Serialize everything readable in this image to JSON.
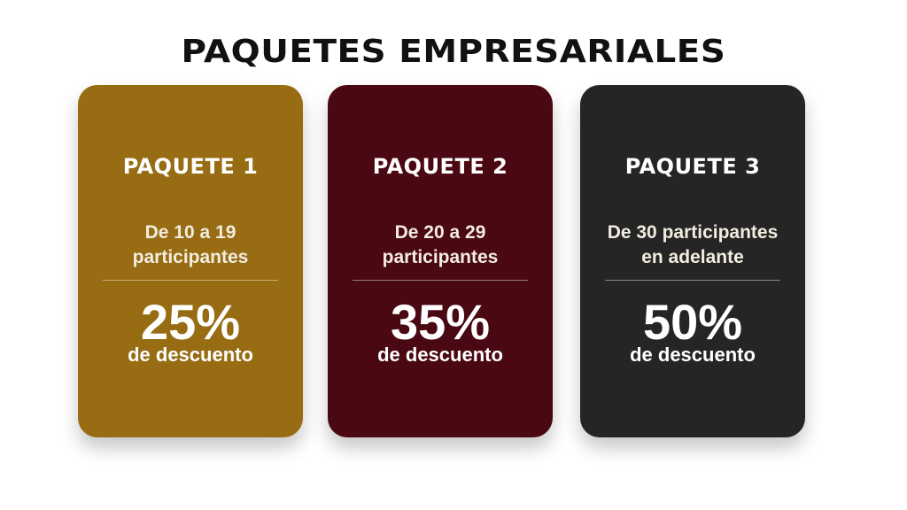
{
  "title": "PAQUETES EMPRESARIALES",
  "packages": [
    {
      "name": "PAQUETE 1",
      "line1": "De 10 a 19",
      "line2": "participantes",
      "discount": "25%",
      "discount_label": "de descuento",
      "color": "#976c13"
    },
    {
      "name": "PAQUETE 2",
      "line1": "De 20 a 29",
      "line2": "participantes",
      "discount": "35%",
      "discount_label": "de descuento",
      "color": "#4a0812"
    },
    {
      "name": "PAQUETE 3",
      "line1": "De 30 participantes",
      "line2": "en adelante",
      "discount": "50%",
      "discount_label": "de descuento",
      "color": "#252525"
    }
  ]
}
